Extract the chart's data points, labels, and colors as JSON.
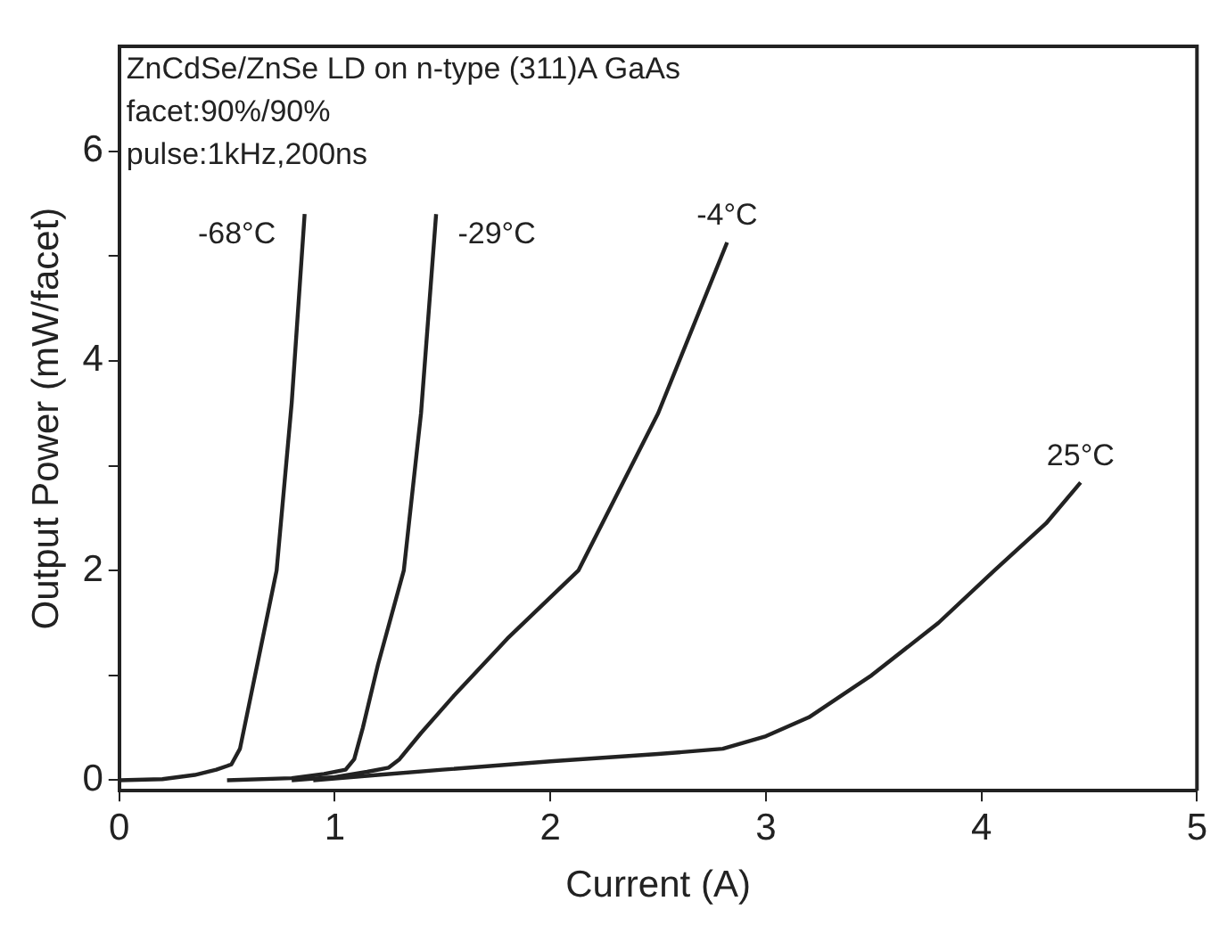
{
  "chart_data": {
    "type": "line",
    "xlabel": "Current (A)",
    "ylabel": "Output Power (mW/facet)",
    "xlim": [
      0,
      5
    ],
    "ylim": [
      -0.1,
      7
    ],
    "xticks": [
      0,
      1,
      2,
      3,
      4,
      5
    ],
    "yticks": [
      0,
      {
        "value": 1,
        "label": null
      },
      2,
      {
        "value": 3,
        "label": null
      },
      4,
      {
        "value": 5,
        "label": null
      },
      6
    ],
    "grid": false,
    "legend": false,
    "marker": "none",
    "line_style": "solid",
    "series": [
      {
        "color": "#222222",
        "x": [
          0,
          0.2,
          0.35,
          0.45,
          0.52,
          0.56,
          0.6,
          0.66,
          0.73,
          0.8,
          0.86
        ],
        "values": [
          0,
          0.01,
          0.05,
          0.1,
          0.15,
          0.3,
          0.7,
          1.3,
          2,
          3.6,
          5.4
        ]
      },
      {
        "color": "#222222",
        "x": [
          0.5,
          0.8,
          0.95,
          1.05,
          1.09,
          1.13,
          1.2,
          1.32,
          1.4,
          1.47
        ],
        "values": [
          0,
          0.02,
          0.06,
          0.1,
          0.2,
          0.5,
          1.1,
          2,
          3.5,
          5.4
        ]
      },
      {
        "color": "#222222",
        "x": [
          0.8,
          1.0,
          1.15,
          1.25,
          1.3,
          1.4,
          1.55,
          1.8,
          2.13,
          2.5,
          2.82
        ],
        "values": [
          0,
          0.03,
          0.08,
          0.12,
          0.2,
          0.45,
          0.8,
          1.35,
          2,
          3.5,
          5.13
        ]
      },
      {
        "color": "#222222",
        "x": [
          0.9,
          1.2,
          1.5,
          2.0,
          2.5,
          2.8,
          3.0,
          3.2,
          3.49,
          3.8,
          4.06,
          4.3,
          4.46
        ],
        "values": [
          0,
          0.05,
          0.1,
          0.18,
          0.25,
          0.3,
          0.42,
          0.6,
          1,
          1.5,
          2,
          2.45,
          2.84
        ]
      }
    ],
    "annotations": [
      "ZnCdSe/ZnSe LD on n-type (311)A GaAs",
      "facet:90%/90%",
      "pulse:1kHz,200ns",
      {
        "text": "-68°C",
        "x": 0.86,
        "y": 5.4
      },
      {
        "text": "-29°C",
        "x": 1.47,
        "y": 5.4
      },
      {
        "text": "-4°C",
        "x": 2.82,
        "y": 5.13
      },
      {
        "text": "25°C",
        "x": 4.46,
        "y": 2.84
      }
    ]
  }
}
